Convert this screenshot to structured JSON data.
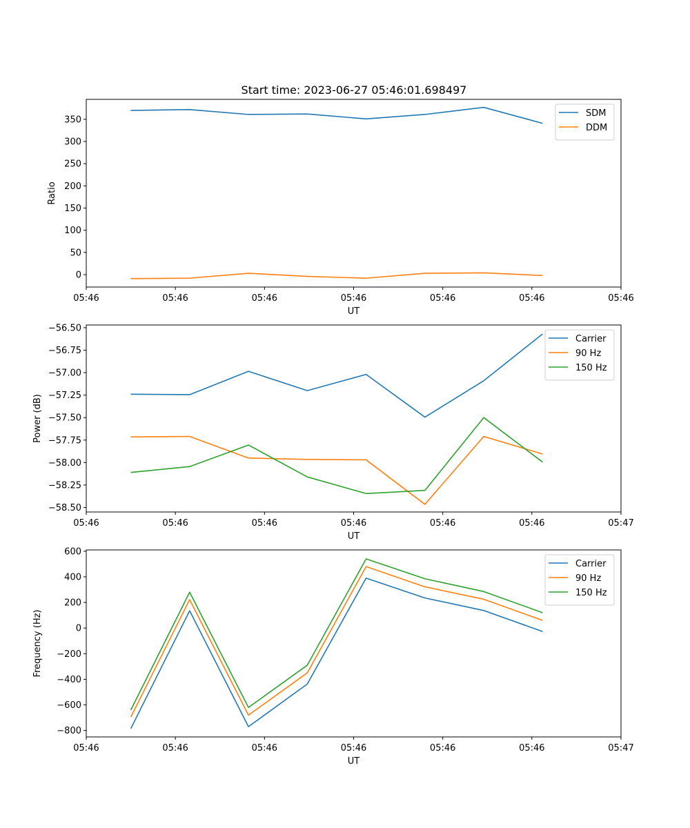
{
  "figure": {
    "title": "Start time: 2023-06-27 05:46:01.698497"
  },
  "chart_data": [
    {
      "type": "line",
      "title": "Start time: 2023-06-27 05:46:01.698497",
      "xlabel": "UT",
      "ylabel": "Ratio",
      "x": [
        0.5,
        1.16,
        1.82,
        2.48,
        3.14,
        3.8,
        4.46,
        5.12
      ],
      "xlim": [
        0.0,
        6.0
      ],
      "xticks": [
        0,
        1,
        2,
        3,
        4,
        5,
        6
      ],
      "xtick_labels": [
        "05:46",
        "05:46",
        "05:46",
        "05:46",
        "05:46",
        "05:46",
        "05:46"
      ],
      "ylim": [
        -28,
        395
      ],
      "yticks": [
        0,
        50,
        100,
        150,
        200,
        250,
        300,
        350
      ],
      "ytick_labels": [
        "0",
        "50",
        "100",
        "150",
        "200",
        "250",
        "300",
        "350"
      ],
      "legend": "top-right",
      "series": [
        {
          "name": "SDM",
          "color": "#1f77b4",
          "values": [
            370,
            372,
            361,
            362,
            351,
            361,
            377,
            341
          ]
        },
        {
          "name": "DDM",
          "color": "#ff7f0e",
          "values": [
            -9,
            -8,
            3,
            -4,
            -8,
            3,
            4,
            -2
          ]
        }
      ]
    },
    {
      "type": "line",
      "title": "",
      "xlabel": "UT",
      "ylabel": "Power (dB)",
      "x": [
        0.5,
        1.16,
        1.82,
        2.48,
        3.14,
        3.8,
        4.46,
        5.12
      ],
      "xlim": [
        0.0,
        6.0
      ],
      "xticks": [
        0,
        1,
        2,
        3,
        4,
        5,
        6
      ],
      "xtick_labels": [
        "05:46",
        "05:46",
        "05:46",
        "05:46",
        "05:46",
        "05:46",
        "05:47"
      ],
      "ylim": [
        -58.55,
        -56.47
      ],
      "yticks": [
        -58.5,
        -58.25,
        -58.0,
        -57.75,
        -57.5,
        -57.25,
        -57.0,
        -56.75,
        -56.5
      ],
      "ytick_labels": [
        "−58.50",
        "−58.25",
        "−58.00",
        "−57.75",
        "−57.50",
        "−57.25",
        "−57.00",
        "−56.75",
        "−56.50"
      ],
      "legend": "top-right",
      "series": [
        {
          "name": "Carrier",
          "color": "#1f77b4",
          "values": [
            -57.24,
            -57.245,
            -56.985,
            -57.2,
            -57.02,
            -57.495,
            -57.09,
            -56.57
          ]
        },
        {
          "name": "90 Hz",
          "color": "#ff7f0e",
          "values": [
            -57.715,
            -57.71,
            -57.95,
            -57.965,
            -57.97,
            -58.465,
            -57.71,
            -57.905
          ]
        },
        {
          "name": "150 Hz",
          "color": "#2ca02c",
          "values": [
            -58.11,
            -58.045,
            -57.805,
            -58.16,
            -58.345,
            -58.31,
            -57.5,
            -57.995
          ]
        }
      ]
    },
    {
      "type": "line",
      "title": "",
      "xlabel": "UT",
      "ylabel": "Frequency (Hz)",
      "x": [
        0.5,
        1.16,
        1.82,
        2.48,
        3.14,
        3.8,
        4.46,
        5.12
      ],
      "xlim": [
        0.0,
        6.0
      ],
      "xticks": [
        0,
        1,
        2,
        3,
        4,
        5,
        6
      ],
      "xtick_labels": [
        "05:46",
        "05:46",
        "05:46",
        "05:46",
        "05:46",
        "05:46",
        "05:47"
      ],
      "ylim": [
        -850,
        610
      ],
      "yticks": [
        -800,
        -600,
        -400,
        -200,
        0,
        200,
        400,
        600
      ],
      "ytick_labels": [
        "−800",
        "−600",
        "−400",
        "−200",
        "0",
        "200",
        "400",
        "600"
      ],
      "legend": "top-right",
      "series": [
        {
          "name": "Carrier",
          "color": "#1f77b4",
          "values": [
            -785,
            135,
            -770,
            -437,
            390,
            235,
            137,
            -27
          ]
        },
        {
          "name": "90 Hz",
          "color": "#ff7f0e",
          "values": [
            -695,
            222,
            -680,
            -350,
            480,
            322,
            225,
            60
          ]
        },
        {
          "name": "150 Hz",
          "color": "#2ca02c",
          "values": [
            -640,
            280,
            -620,
            -290,
            540,
            385,
            285,
            120
          ]
        }
      ]
    }
  ]
}
